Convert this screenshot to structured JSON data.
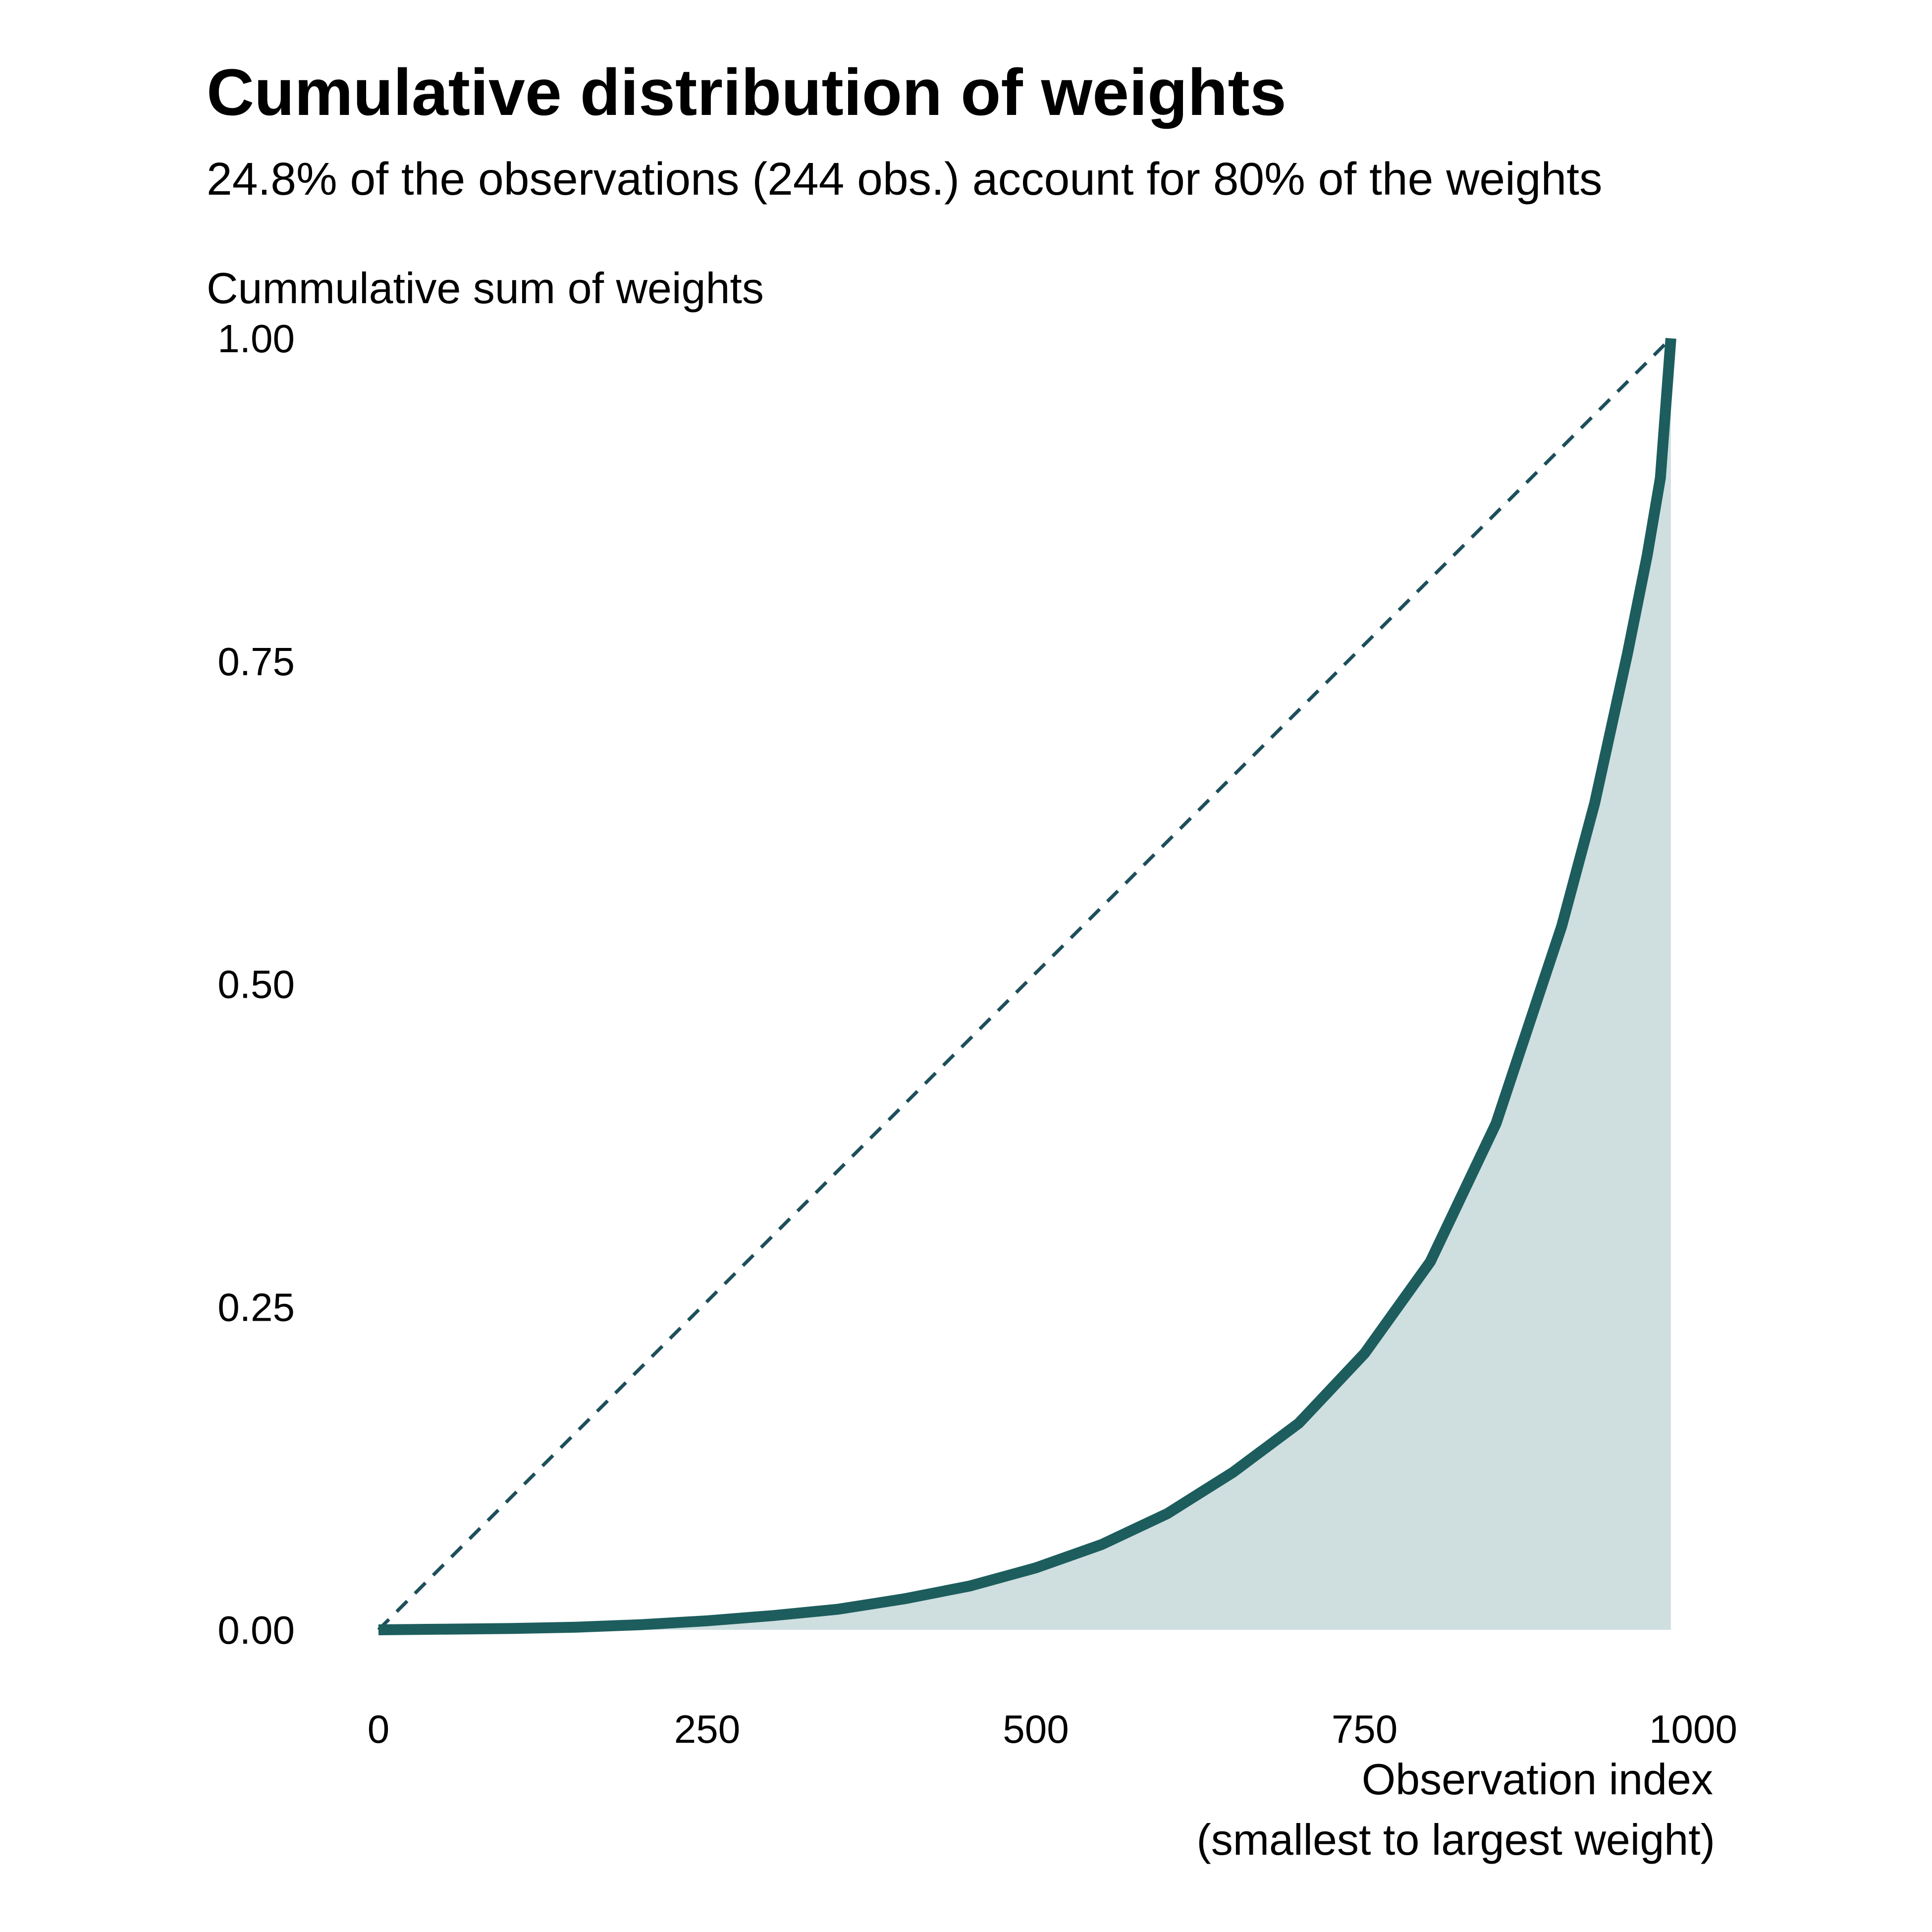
{
  "colors": {
    "line": "#1d5d5d",
    "fill": "#cfdedf",
    "diagonal": "#1d4f5b",
    "text": "#000000",
    "background": "#ffffff"
  },
  "chart_data": {
    "type": "area",
    "title": "Cumulative distribution of weights",
    "subtitle": "24.8% of the observations (244 obs.) account for 80% of the weights",
    "ylabel": "Cummulative sum of weights",
    "xlabel_lines": [
      "Observation index",
      "(smallest to largest weight)"
    ],
    "xlim": [
      0,
      1000
    ],
    "ylim": [
      0,
      1
    ],
    "x_ticks": [
      0,
      250,
      500,
      750,
      1000
    ],
    "x_tick_labels": [
      "0",
      "250",
      "500",
      "750",
      "1000"
    ],
    "y_ticks": [
      0,
      0.25,
      0.5,
      0.75,
      1
    ],
    "y_tick_labels": [
      "0.00",
      "0.25",
      "0.50",
      "0.75",
      "1.00"
    ],
    "grid": false,
    "legend": "none",
    "reference_line": {
      "style": "dashed",
      "from": [
        0,
        0
      ],
      "to": [
        983,
        1
      ]
    },
    "series": [
      {
        "x": [
          0,
          50,
          100,
          150,
          200,
          250,
          300,
          350,
          400,
          450,
          500,
          550,
          600,
          650,
          700,
          750,
          800,
          850,
          900,
          925,
          950,
          965,
          975,
          983
        ],
        "y": [
          0,
          0.0005,
          0.001,
          0.002,
          0.004,
          0.007,
          0.011,
          0.016,
          0.024,
          0.034,
          0.048,
          0.066,
          0.09,
          0.122,
          0.16,
          0.214,
          0.285,
          0.392,
          0.545,
          0.64,
          0.756,
          0.832,
          0.892,
          1.0
        ]
      }
    ]
  }
}
